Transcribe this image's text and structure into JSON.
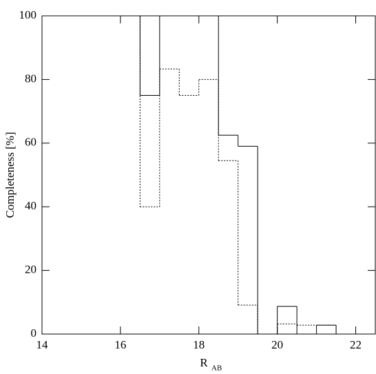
{
  "chart_data": {
    "type": "step-histogram",
    "y_label": "Completeness [%]",
    "x_label": "R",
    "x_label_subscript": "AB",
    "bins": [
      14,
      14.5,
      15,
      15.5,
      16,
      16.5,
      17,
      17.5,
      18,
      18.5,
      19,
      19.5,
      20,
      20.5,
      21,
      21.5,
      22,
      22.5
    ],
    "series": [
      {
        "color": "#000000",
        "line_style": "solid",
        "values": [
          100,
          100,
          100,
          100,
          100,
          75,
          100,
          100,
          100,
          62.5,
          59,
          0,
          8.7,
          0,
          2.8,
          0,
          0
        ]
      },
      {
        "color": "#000000",
        "line_style": "dotted",
        "values": [
          100,
          100,
          100,
          100,
          100,
          40,
          83.3,
          75,
          80,
          54.5,
          9.1,
          0,
          3.2,
          2.8,
          2.8,
          0,
          0
        ]
      }
    ],
    "xlim": [
      14,
      22.5
    ],
    "xticks": [
      14,
      16,
      18,
      20,
      22
    ],
    "ylim": [
      0,
      100
    ],
    "yticks": [
      0,
      20,
      40,
      60,
      80,
      100
    ]
  }
}
